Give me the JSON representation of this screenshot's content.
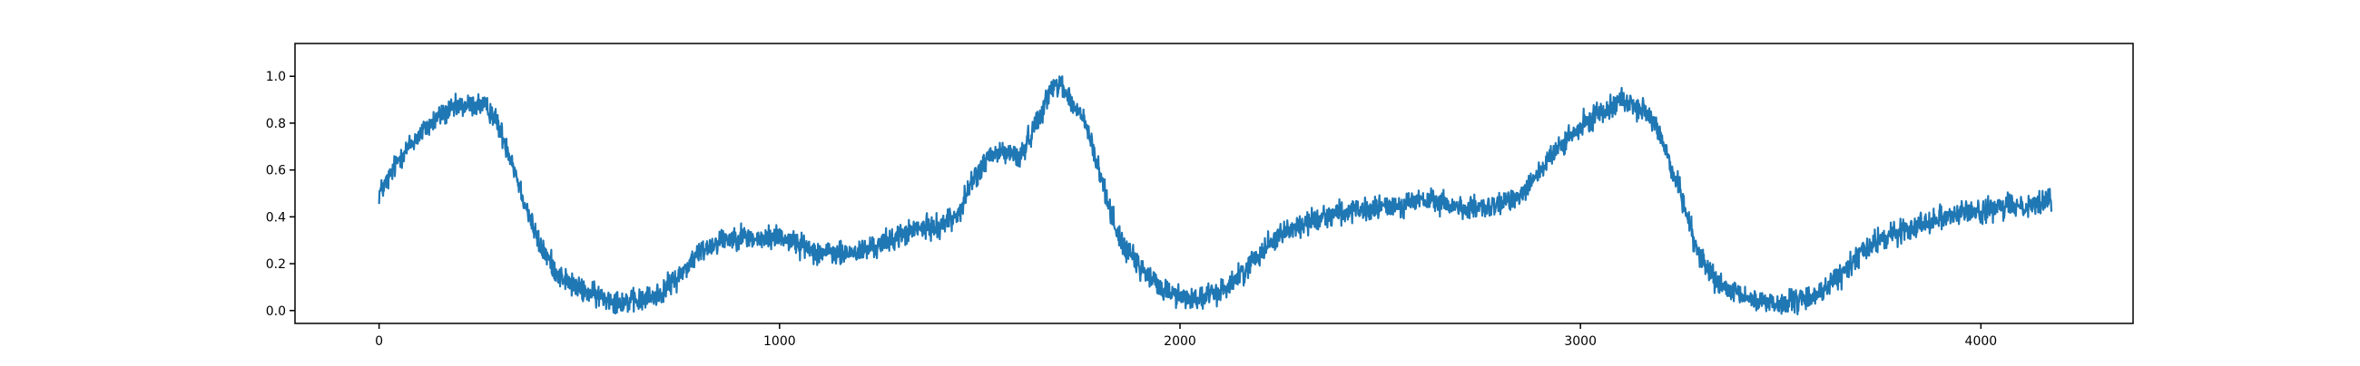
{
  "chart_data": {
    "type": "line",
    "title": "",
    "xlabel": "",
    "ylabel": "",
    "xlim": [
      -210,
      4380
    ],
    "ylim": [
      -0.055,
      1.14
    ],
    "x_ticks": [
      0,
      1000,
      2000,
      3000,
      4000
    ],
    "y_ticks": [
      0.0,
      0.2,
      0.4,
      0.6,
      0.8,
      1.0
    ],
    "x_tick_labels": [
      "0",
      "1000",
      "2000",
      "3000",
      "4000"
    ],
    "y_tick_labels": [
      "0.0",
      "0.2",
      "0.4",
      "0.6",
      "0.8",
      "1.0"
    ],
    "grid": false,
    "legend": "none",
    "n_points": 4177,
    "series_color": "#1f77b4",
    "noise_amplitude": 0.035,
    "series": [
      {
        "x": [
          0,
          20,
          50,
          100,
          150,
          200,
          250,
          280,
          300,
          330,
          360,
          400,
          450,
          500,
          550,
          600,
          650,
          700,
          750,
          800,
          850,
          900,
          950,
          1000,
          1050,
          1100,
          1150,
          1200,
          1250,
          1300,
          1350,
          1400,
          1450,
          1480,
          1520,
          1560,
          1600,
          1640,
          1680,
          1700,
          1730,
          1760,
          1800,
          1850,
          1900,
          1950,
          2000,
          2050,
          2100,
          2150,
          2200,
          2250,
          2300,
          2350,
          2400,
          2450,
          2500,
          2550,
          2600,
          2650,
          2700,
          2750,
          2800,
          2850,
          2900,
          2950,
          3000,
          3050,
          3080,
          3100,
          3130,
          3160,
          3200,
          3250,
          3300,
          3350,
          3400,
          3450,
          3500,
          3550,
          3600,
          3650,
          3700,
          3750,
          3800,
          3850,
          3900,
          3950,
          4000,
          4050,
          4100,
          4150,
          4176
        ],
        "y": [
          0.5,
          0.55,
          0.65,
          0.75,
          0.83,
          0.87,
          0.88,
          0.85,
          0.78,
          0.65,
          0.48,
          0.28,
          0.15,
          0.09,
          0.06,
          0.04,
          0.04,
          0.07,
          0.15,
          0.25,
          0.3,
          0.32,
          0.3,
          0.32,
          0.28,
          0.25,
          0.24,
          0.25,
          0.28,
          0.32,
          0.35,
          0.36,
          0.42,
          0.55,
          0.65,
          0.68,
          0.65,
          0.8,
          0.95,
          0.98,
          0.88,
          0.82,
          0.58,
          0.3,
          0.18,
          0.1,
          0.06,
          0.05,
          0.08,
          0.15,
          0.25,
          0.33,
          0.36,
          0.4,
          0.42,
          0.42,
          0.44,
          0.45,
          0.47,
          0.46,
          0.44,
          0.43,
          0.45,
          0.5,
          0.6,
          0.7,
          0.78,
          0.85,
          0.88,
          0.9,
          0.88,
          0.85,
          0.75,
          0.5,
          0.22,
          0.1,
          0.06,
          0.04,
          0.03,
          0.04,
          0.08,
          0.15,
          0.25,
          0.3,
          0.34,
          0.37,
          0.4,
          0.42,
          0.42,
          0.44,
          0.45,
          0.46,
          0.47
        ]
      }
    ]
  }
}
